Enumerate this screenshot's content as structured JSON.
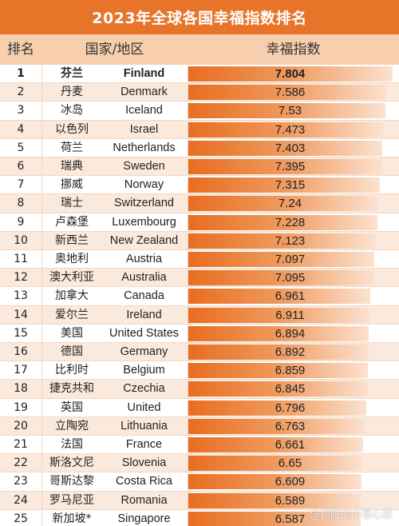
{
  "title": "2023年全球各国幸福指数排名",
  "headers": {
    "rank": "排名",
    "country": "国家/地区",
    "score": "幸福指数"
  },
  "watermark": "@铜陵的小巷心菜",
  "colors": {
    "title_bg": "#e8742a",
    "header_bg": "#f7cfae",
    "bar_start": "#e86d1f",
    "bar_end": "#fbe2d0",
    "row_alt": "#fbe9dc"
  },
  "chart_data": {
    "type": "bar",
    "title": "2023年全球各国幸福指数排名",
    "ylabel": "幸福指数",
    "rows": [
      {
        "rank": "1",
        "cn": "芬兰",
        "en": "Finland",
        "value": 7.804,
        "label": "7.804"
      },
      {
        "rank": "2",
        "cn": "丹麦",
        "en": "Denmark",
        "value": 7.586,
        "label": "7.586"
      },
      {
        "rank": "3",
        "cn": "冰岛",
        "en": "Iceland",
        "value": 7.53,
        "label": "7.53"
      },
      {
        "rank": "4",
        "cn": "以色列",
        "en": "Israel",
        "value": 7.473,
        "label": "7.473"
      },
      {
        "rank": "5",
        "cn": "荷兰",
        "en": "Netherlands",
        "value": 7.403,
        "label": "7.403"
      },
      {
        "rank": "6",
        "cn": "瑞典",
        "en": "Sweden",
        "value": 7.395,
        "label": "7.395"
      },
      {
        "rank": "7",
        "cn": "挪威",
        "en": "Norway",
        "value": 7.315,
        "label": "7.315"
      },
      {
        "rank": "8",
        "cn": "瑞士",
        "en": "Switzerland",
        "value": 7.24,
        "label": "7.24"
      },
      {
        "rank": "9",
        "cn": "卢森堡",
        "en": "Luxembourg",
        "value": 7.228,
        "label": "7.228"
      },
      {
        "rank": "10",
        "cn": "新西兰",
        "en": "New Zealand",
        "value": 7.123,
        "label": "7.123"
      },
      {
        "rank": "11",
        "cn": "奥地利",
        "en": "Austria",
        "value": 7.097,
        "label": "7.097"
      },
      {
        "rank": "12",
        "cn": "澳大利亚",
        "en": "Australia",
        "value": 7.095,
        "label": "7.095"
      },
      {
        "rank": "13",
        "cn": "加拿大",
        "en": "Canada",
        "value": 6.961,
        "label": "6.961"
      },
      {
        "rank": "14",
        "cn": "爱尔兰",
        "en": "Ireland",
        "value": 6.911,
        "label": "6.911"
      },
      {
        "rank": "15",
        "cn": "美国",
        "en": "United States",
        "value": 6.894,
        "label": "6.894"
      },
      {
        "rank": "16",
        "cn": "德国",
        "en": "Germany",
        "value": 6.892,
        "label": "6.892"
      },
      {
        "rank": "17",
        "cn": "比利时",
        "en": "Belgium",
        "value": 6.859,
        "label": "6.859"
      },
      {
        "rank": "18",
        "cn": "捷克共和",
        "en": "Czechia",
        "value": 6.845,
        "label": "6.845"
      },
      {
        "rank": "19",
        "cn": "英国",
        "en": "United",
        "value": 6.796,
        "label": "6.796"
      },
      {
        "rank": "20",
        "cn": "立陶宛",
        "en": "Lithuania",
        "value": 6.763,
        "label": "6.763"
      },
      {
        "rank": "21",
        "cn": "法国",
        "en": "France",
        "value": 6.661,
        "label": "6.661"
      },
      {
        "rank": "22",
        "cn": "斯洛文尼",
        "en": "Slovenia",
        "value": 6.65,
        "label": "6.65"
      },
      {
        "rank": "23",
        "cn": "哥斯达黎",
        "en": "Costa Rica",
        "value": 6.609,
        "label": "6.609"
      },
      {
        "rank": "24",
        "cn": "罗马尼亚",
        "en": "Romania",
        "value": 6.589,
        "label": "6.589"
      },
      {
        "rank": "25",
        "cn": "新加坡*",
        "en": "Singapore",
        "value": 6.587,
        "label": "6.587"
      }
    ],
    "xlim": [
      0,
      8
    ]
  }
}
